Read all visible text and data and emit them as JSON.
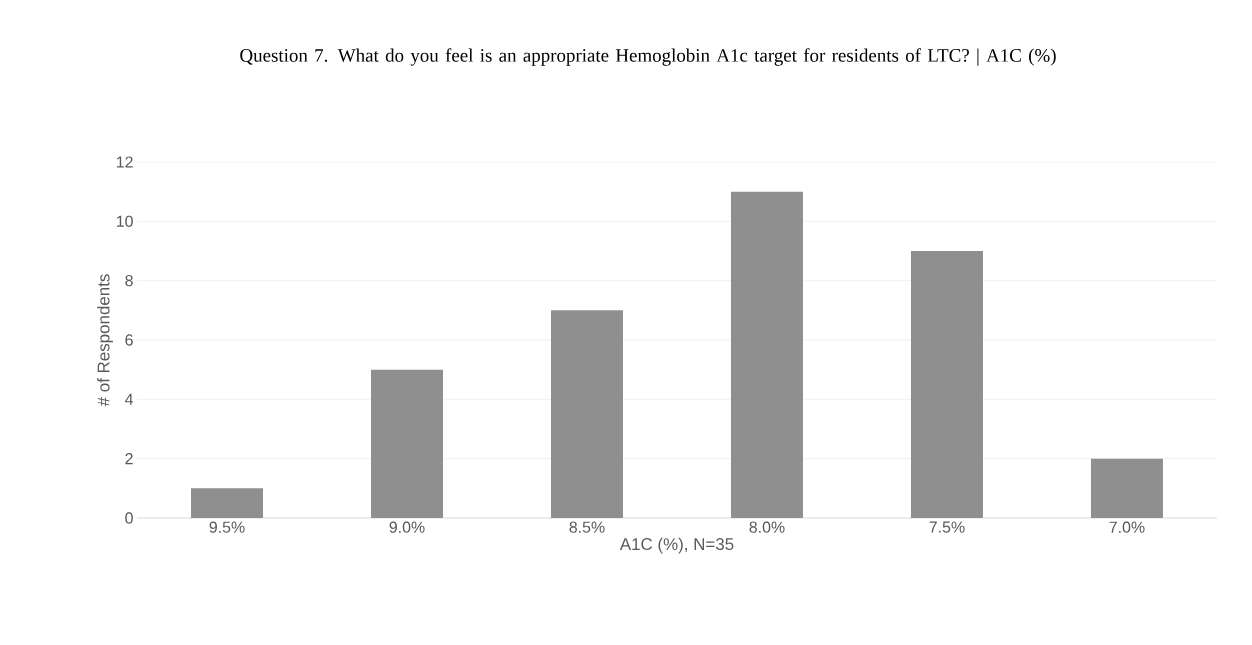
{
  "chart_data": {
    "type": "bar",
    "title": "Question 7. What do you feel is an appropriate Hemoglobin A1c target for residents of LTC? | A1C (%)",
    "xlabel": "A1C (%), N=35",
    "ylabel": "# of Respondents",
    "categories": [
      "9.5%",
      "9.0%",
      "8.5%",
      "8.0%",
      "7.5%",
      "7.0%"
    ],
    "values": [
      1,
      5,
      7,
      11,
      9,
      2
    ],
    "color": "#8f8f8f",
    "ylim": [
      0,
      12
    ],
    "yticks": [
      0,
      2,
      4,
      6,
      8,
      10,
      12
    ],
    "grid": "y"
  }
}
